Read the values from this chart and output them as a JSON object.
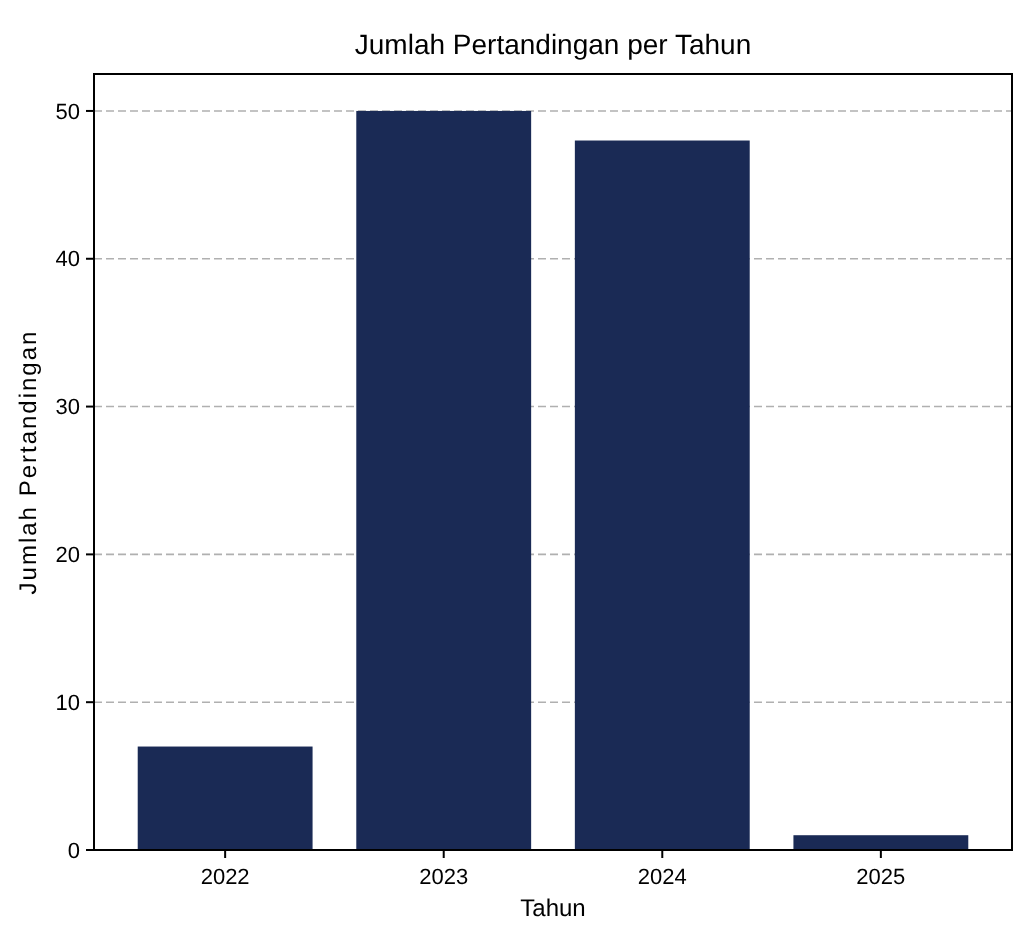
{
  "chart_data": {
    "type": "bar",
    "title": "Jumlah Pertandingan per Tahun",
    "xlabel": "Tahun",
    "ylabel": "Jumlah Pertandingan",
    "categories": [
      "2022",
      "2023",
      "2024",
      "2025"
    ],
    "values": [
      7,
      50,
      48,
      1
    ],
    "color": "#1a2a55",
    "ylim": [
      0,
      52.5
    ],
    "yticks": [
      0,
      10,
      20,
      30,
      40,
      50
    ],
    "grid": "y"
  }
}
